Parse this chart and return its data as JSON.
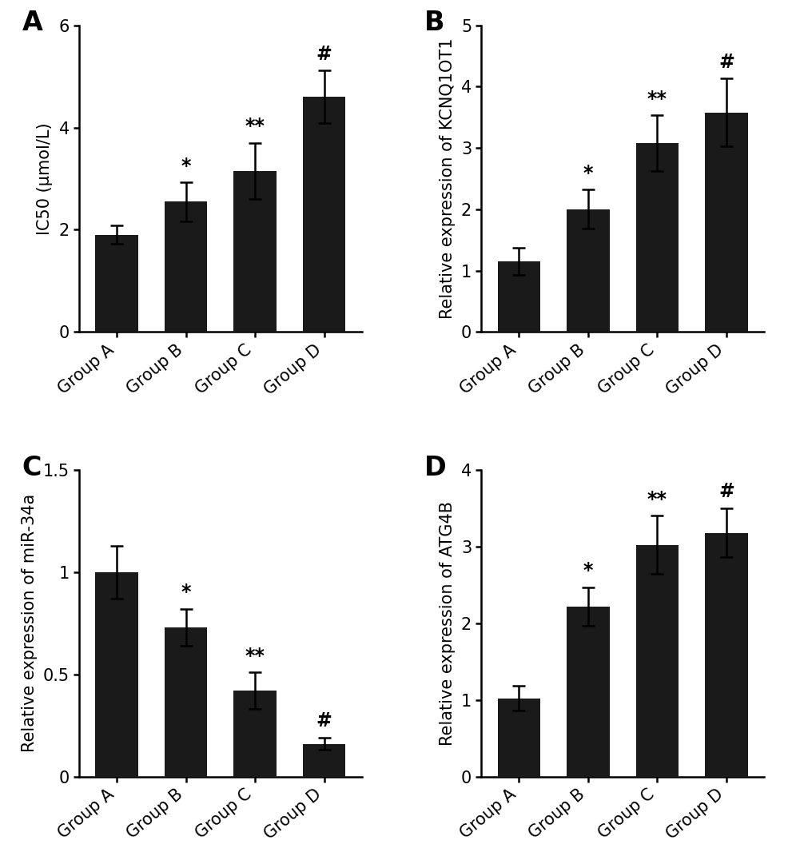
{
  "panels": [
    {
      "label": "A",
      "ylabel": "IC50 (μmol/L)",
      "categories": [
        "Group A",
        "Group B",
        "Group C",
        "Group D"
      ],
      "values": [
        1.9,
        2.55,
        3.15,
        4.6
      ],
      "errors": [
        0.18,
        0.38,
        0.55,
        0.52
      ],
      "annotations": [
        "",
        "*",
        "**",
        "#"
      ],
      "ylim": [
        0,
        6
      ],
      "yticks": [
        0,
        2,
        4,
        6
      ]
    },
    {
      "label": "B",
      "ylabel": "Relative expression of KCNQ1OT1",
      "categories": [
        "Group A",
        "Group B",
        "Group C",
        "Group D"
      ],
      "values": [
        1.15,
        2.0,
        3.08,
        3.58
      ],
      "errors": [
        0.22,
        0.32,
        0.45,
        0.55
      ],
      "annotations": [
        "",
        "*",
        "**",
        "#"
      ],
      "ylim": [
        0,
        5
      ],
      "yticks": [
        0,
        1,
        2,
        3,
        4,
        5
      ]
    },
    {
      "label": "C",
      "ylabel": "Relative expression of miR-34a",
      "categories": [
        "Group A",
        "Group B",
        "Group C",
        "Group D"
      ],
      "values": [
        1.0,
        0.73,
        0.42,
        0.16
      ],
      "errors": [
        0.13,
        0.09,
        0.09,
        0.03
      ],
      "annotations": [
        "",
        "*",
        "**",
        "#"
      ],
      "ylim": [
        0,
        1.5
      ],
      "yticks": [
        0.0,
        0.5,
        1.0,
        1.5
      ]
    },
    {
      "label": "D",
      "ylabel": "Relative expression of ATG4B",
      "categories": [
        "Group A",
        "Group B",
        "Group C",
        "Group D"
      ],
      "values": [
        1.02,
        2.22,
        3.02,
        3.18
      ],
      "errors": [
        0.16,
        0.25,
        0.38,
        0.32
      ],
      "annotations": [
        "",
        "*",
        "**",
        "#"
      ],
      "ylim": [
        0,
        4
      ],
      "yticks": [
        0,
        1,
        2,
        3,
        4
      ]
    }
  ],
  "bar_color": "#1a1a1a",
  "bar_width": 0.62,
  "capsize": 6,
  "label_fontsize": 24,
  "tick_fontsize": 15,
  "ylabel_fontsize": 15,
  "annot_fontsize": 17,
  "xlabel_rotation": 40
}
